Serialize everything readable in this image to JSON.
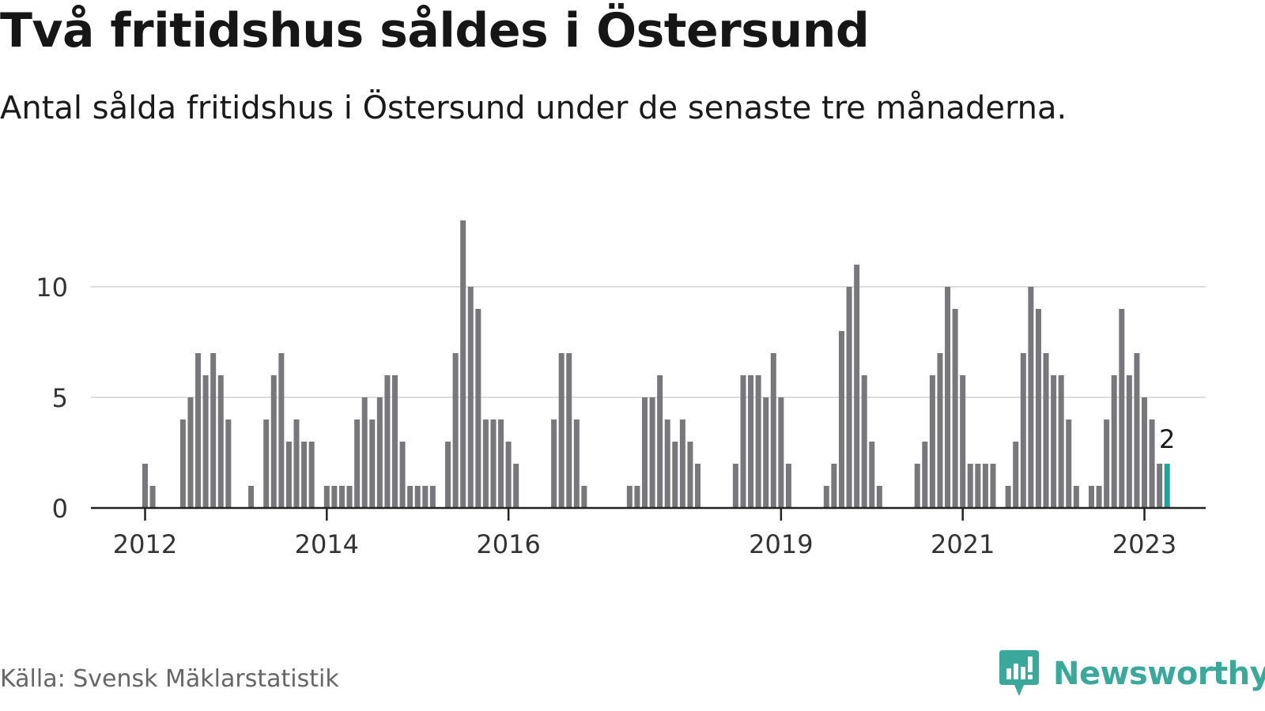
{
  "title": "Två fritidshus såldes i Östersund",
  "subtitle": "Antal sålda fritidshus i Östersund under de senaste tre månaderna.",
  "source": "Källa: Svensk Mäklarstatistik",
  "brand": {
    "name": "Newsworthy",
    "icon": "newsworthy-logo-icon"
  },
  "colors": {
    "bar": "#77777c",
    "highlight": "#1aa69a",
    "grid": "#dddddd",
    "axis": "#222222",
    "brand": "#3aa89a"
  },
  "chart_data": {
    "type": "bar",
    "title": "Två fritidshus såldes i Östersund",
    "xlabel": "",
    "ylabel": "",
    "ylim": [
      0,
      13
    ],
    "y_ticks": [
      0,
      5,
      10
    ],
    "grid": true,
    "first_month": "2012-01",
    "x_tick_labels": [
      "2012",
      "2014",
      "2016",
      "2019",
      "2021",
      "2023"
    ],
    "x_tick_months": [
      "2012-01",
      "2014-01",
      "2016-01",
      "2019-01",
      "2021-01",
      "2023-01"
    ],
    "values": [
      2,
      1,
      0,
      0,
      0,
      4,
      5,
      7,
      6,
      7,
      6,
      4,
      0,
      0,
      1,
      0,
      4,
      6,
      7,
      3,
      4,
      3,
      3,
      0,
      1,
      1,
      1,
      1,
      4,
      5,
      4,
      5,
      6,
      6,
      3,
      1,
      1,
      1,
      1,
      0,
      3,
      7,
      13,
      10,
      9,
      4,
      4,
      4,
      3,
      2,
      0,
      0,
      0,
      0,
      4,
      7,
      7,
      4,
      1,
      0,
      0,
      0,
      0,
      0,
      1,
      1,
      5,
      5,
      6,
      4,
      3,
      4,
      3,
      2,
      0,
      0,
      0,
      0,
      2,
      6,
      6,
      6,
      5,
      7,
      5,
      2,
      0,
      0,
      0,
      0,
      1,
      2,
      8,
      10,
      11,
      6,
      3,
      1,
      0,
      0,
      0,
      0,
      2,
      3,
      6,
      7,
      10,
      9,
      6,
      2,
      2,
      2,
      2,
      0,
      1,
      3,
      7,
      10,
      9,
      7,
      6,
      6,
      4,
      1,
      0,
      1,
      1,
      4,
      6,
      9,
      6,
      7,
      5,
      4,
      2,
      2
    ],
    "highlight_index": 135,
    "highlight_label": "2"
  }
}
